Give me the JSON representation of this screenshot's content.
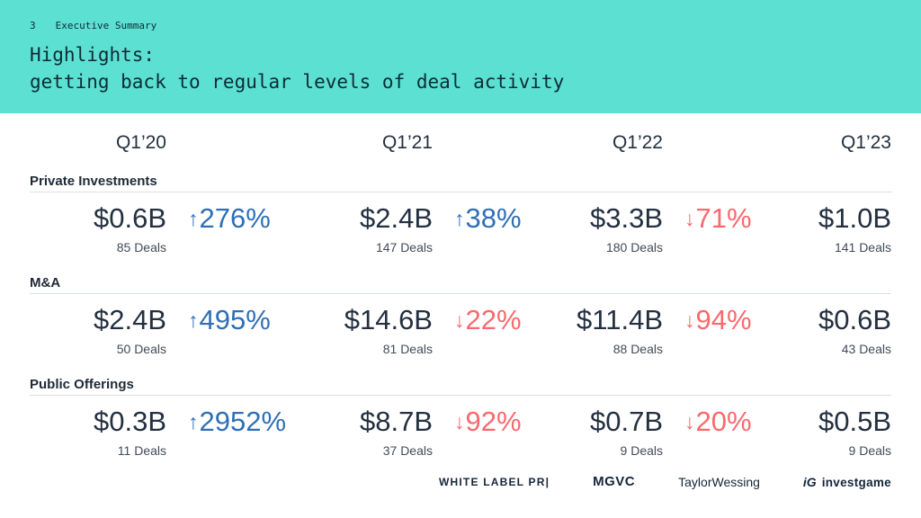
{
  "slide": {
    "page_number": "3",
    "eyebrow": "Executive Summary",
    "title_line1": "Highlights:",
    "title_line2": "getting back to regular levels of deal activity"
  },
  "colors": {
    "band_teal": "#5ce0d1",
    "navy_text": "#243040",
    "up_blue": "#2f6fb6",
    "down_red": "#f9696e",
    "rule_gray": "#dcdfe2"
  },
  "table": {
    "quarters": [
      "Q1’20",
      "Q1’21",
      "Q1’22",
      "Q1’23"
    ],
    "sections": [
      {
        "label": "Private Investments",
        "values": [
          "$0.6B",
          "$2.4B",
          "$3.3B",
          "$1.0B"
        ],
        "deals": [
          "85 Deals",
          "147 Deals",
          "180 Deals",
          "141 Deals"
        ],
        "changes": [
          {
            "direction": "up",
            "arrow": "↑",
            "value": "276%"
          },
          {
            "direction": "up",
            "arrow": "↑",
            "value": "38%"
          },
          {
            "direction": "down",
            "arrow": "↓",
            "value": "71%"
          }
        ]
      },
      {
        "label": "M&A",
        "values": [
          "$2.4B",
          "$14.6B",
          "$11.4B",
          "$0.6B"
        ],
        "deals": [
          "50 Deals",
          "81 Deals",
          "88 Deals",
          "43 Deals"
        ],
        "changes": [
          {
            "direction": "up",
            "arrow": "↑",
            "value": "495%"
          },
          {
            "direction": "down",
            "arrow": "↓",
            "value": "22%"
          },
          {
            "direction": "down",
            "arrow": "↓",
            "value": "94%"
          }
        ]
      },
      {
        "label": "Public Offerings",
        "values": [
          "$0.3B",
          "$8.7B",
          "$0.7B",
          "$0.5B"
        ],
        "deals": [
          "11 Deals",
          "37 Deals",
          "9 Deals",
          "9 Deals"
        ],
        "changes": [
          {
            "direction": "up",
            "arrow": "↑",
            "value": "2952%"
          },
          {
            "direction": "down",
            "arrow": "↓",
            "value": "92%"
          },
          {
            "direction": "down",
            "arrow": "↓",
            "value": "20%"
          }
        ]
      }
    ]
  },
  "chart_data": {
    "type": "table",
    "title": "Highlights: getting back to regular levels of deal activity",
    "categories": [
      "Q1'20",
      "Q1'21",
      "Q1'22",
      "Q1'23"
    ],
    "series": [
      {
        "name": "Private Investments",
        "values_usd_b": [
          0.6,
          2.4,
          3.3,
          1.0
        ],
        "deals": [
          85,
          147,
          180,
          141
        ],
        "qoq_change_pct": [
          276,
          38,
          -71
        ]
      },
      {
        "name": "M&A",
        "values_usd_b": [
          2.4,
          14.6,
          11.4,
          0.6
        ],
        "deals": [
          50,
          81,
          88,
          43
        ],
        "qoq_change_pct": [
          495,
          -22,
          -94
        ]
      },
      {
        "name": "Public Offerings",
        "values_usd_b": [
          0.3,
          8.7,
          0.7,
          0.5
        ],
        "deals": [
          11,
          37,
          9,
          9
        ],
        "qoq_change_pct": [
          2952,
          -92,
          -20
        ]
      }
    ]
  },
  "footer": {
    "logo_white_label": "WHITE LABEL PR|",
    "logo_mgvc": "MGVC",
    "logo_taylor_wessing": "TaylorWessing",
    "logo_ig_mark": "iG",
    "logo_ig_word": "investgame"
  }
}
